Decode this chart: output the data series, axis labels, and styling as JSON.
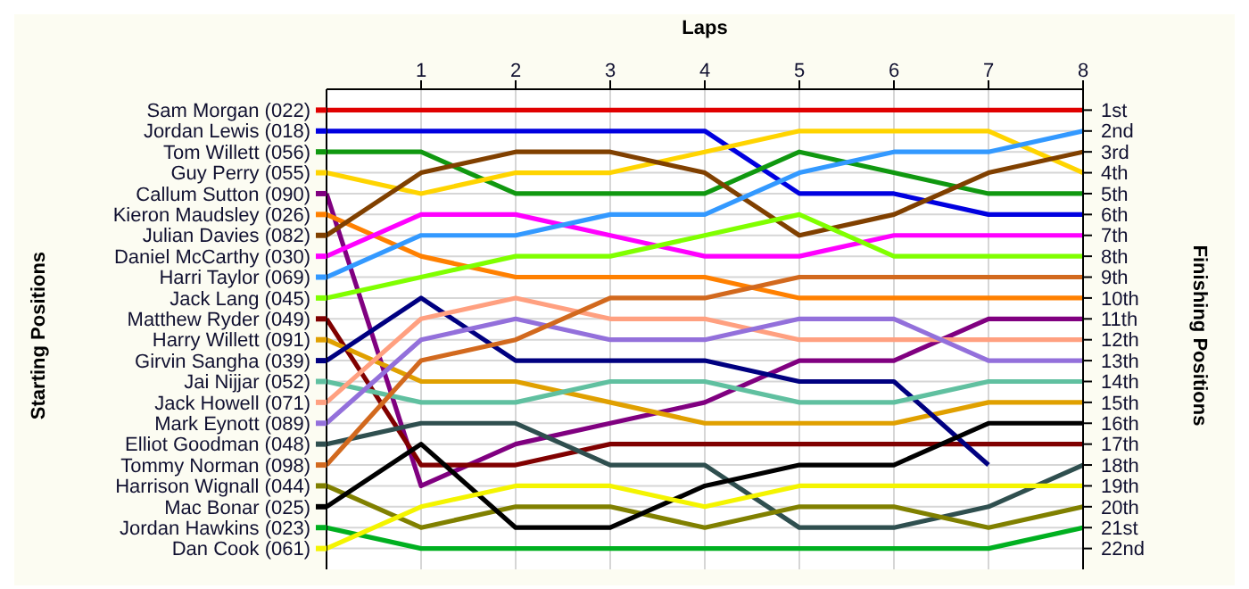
{
  "chart_data": {
    "type": "line",
    "title": "Laps",
    "annotations": [
      "Starting Positions"
    ],
    "y2label": "Finishing Positions",
    "legend": "left",
    "x": [
      0,
      1,
      2,
      3,
      4,
      5,
      6,
      7,
      8
    ],
    "xlim": [
      0,
      8
    ],
    "xticks": [
      1,
      2,
      3,
      4,
      5,
      6,
      7,
      8
    ],
    "y2lim": [
      23,
      0
    ],
    "y2ticks": [
      {
        "value": 1,
        "label": "1st"
      },
      {
        "value": 2,
        "label": "2nd"
      },
      {
        "value": 3,
        "label": "3rd"
      },
      {
        "value": 4,
        "label": "4th"
      },
      {
        "value": 5,
        "label": "5th"
      },
      {
        "value": 6,
        "label": "6th"
      },
      {
        "value": 7,
        "label": "7th"
      },
      {
        "value": 8,
        "label": "8th"
      },
      {
        "value": 9,
        "label": "9th"
      },
      {
        "value": 10,
        "label": "10th"
      },
      {
        "value": 11,
        "label": "11th"
      },
      {
        "value": 12,
        "label": "12th"
      },
      {
        "value": 13,
        "label": "13th"
      },
      {
        "value": 14,
        "label": "14th"
      },
      {
        "value": 15,
        "label": "15th"
      },
      {
        "value": 16,
        "label": "16th"
      },
      {
        "value": 17,
        "label": "17th"
      },
      {
        "value": 18,
        "label": "18th"
      },
      {
        "value": 19,
        "label": "19th"
      },
      {
        "value": 20,
        "label": "20th"
      },
      {
        "value": 21,
        "label": "21st"
      },
      {
        "value": 22,
        "label": "22nd"
      }
    ],
    "grid": true,
    "marker": "none",
    "line_style": "solid",
    "series": [
      {
        "name": "Sam Morgan (022)",
        "axis": "y2",
        "color": "#e00000",
        "values": [
          1,
          1,
          1,
          1,
          1,
          1,
          1,
          1,
          1
        ]
      },
      {
        "name": "Jordan Lewis (018)",
        "axis": "y2",
        "color": "#0000e0",
        "values": [
          2,
          2,
          2,
          2,
          2,
          5,
          5,
          6,
          6
        ]
      },
      {
        "name": "Tom Willett (056)",
        "axis": "y2",
        "color": "#109810",
        "values": [
          3,
          3,
          5,
          5,
          5,
          3,
          4,
          5,
          5
        ]
      },
      {
        "name": "Guy Perry (055)",
        "axis": "y2",
        "color": "#ffd400",
        "values": [
          4,
          5,
          4,
          4,
          3,
          2,
          2,
          2,
          4
        ]
      },
      {
        "name": "Callum Sutton (090)",
        "axis": "y2",
        "color": "#800080",
        "values": [
          5,
          19,
          17,
          16,
          15,
          13,
          13,
          11,
          11
        ]
      },
      {
        "name": "Kieron Maudsley (026)",
        "axis": "y2",
        "color": "#ff8000",
        "values": [
          6,
          8,
          9,
          9,
          9,
          10,
          10,
          10,
          10
        ]
      },
      {
        "name": "Julian Davies (082)",
        "axis": "y2",
        "color": "#804000",
        "values": [
          7,
          4,
          3,
          3,
          4,
          7,
          6,
          4,
          3
        ]
      },
      {
        "name": "Daniel McCarthy (030)",
        "axis": "y2",
        "color": "#ff00ff",
        "values": [
          8,
          6,
          6,
          7,
          8,
          8,
          7,
          7,
          7
        ]
      },
      {
        "name": "Harri Taylor (069)",
        "axis": "y2",
        "color": "#3399ff",
        "values": [
          9,
          7,
          7,
          6,
          6,
          4,
          3,
          3,
          2
        ]
      },
      {
        "name": "Jack Lang (045)",
        "axis": "y2",
        "color": "#80ff00",
        "values": [
          10,
          9,
          8,
          8,
          7,
          6,
          8,
          8,
          8
        ]
      },
      {
        "name": "Matthew Ryder (049)",
        "axis": "y2",
        "color": "#800000",
        "values": [
          11,
          18,
          18,
          17,
          17,
          17,
          17,
          17,
          17
        ]
      },
      {
        "name": "Harry Willett (091)",
        "axis": "y2",
        "color": "#e0a000",
        "values": [
          12,
          14,
          14,
          15,
          16,
          16,
          16,
          15,
          15
        ]
      },
      {
        "name": "Girvin Sangha (039)",
        "axis": "y2",
        "color": "#000080",
        "values": [
          13,
          10,
          13,
          13,
          13,
          14,
          14,
          18,
          null
        ]
      },
      {
        "name": "Jai Nijjar (052)",
        "axis": "y2",
        "color": "#60c0a0",
        "values": [
          14,
          15,
          15,
          14,
          14,
          15,
          15,
          14,
          14
        ]
      },
      {
        "name": "Jack Howell (071)",
        "axis": "y2",
        "color": "#ffa080",
        "values": [
          15,
          11,
          10,
          11,
          11,
          12,
          12,
          12,
          12
        ]
      },
      {
        "name": "Mark Eynott (089)",
        "axis": "y2",
        "color": "#9370db",
        "values": [
          16,
          12,
          11,
          12,
          12,
          11,
          11,
          13,
          13
        ]
      },
      {
        "name": "Elliot Goodman (048)",
        "axis": "y2",
        "color": "#2f4f4f",
        "values": [
          17,
          16,
          16,
          18,
          18,
          21,
          21,
          20,
          18
        ]
      },
      {
        "name": "Tommy Norman (098)",
        "axis": "y2",
        "color": "#d2691e",
        "values": [
          18,
          13,
          12,
          10,
          10,
          9,
          9,
          9,
          9
        ]
      },
      {
        "name": "Harrison Wignall (044)",
        "axis": "y2",
        "color": "#808000",
        "values": [
          19,
          21,
          20,
          20,
          21,
          20,
          20,
          21,
          20
        ]
      },
      {
        "name": "Mac Bonar (025)",
        "axis": "y2",
        "color": "#000000",
        "values": [
          20,
          17,
          21,
          21,
          19,
          18,
          18,
          16,
          16
        ]
      },
      {
        "name": "Jordan Hawkins (023)",
        "axis": "y2",
        "color": "#00b020",
        "values": [
          21,
          22,
          22,
          22,
          22,
          22,
          22,
          22,
          21
        ]
      },
      {
        "name": "Dan Cook (061)",
        "axis": "y2",
        "color": "#f4f400",
        "values": [
          22,
          20,
          19,
          19,
          20,
          19,
          19,
          19,
          19
        ]
      }
    ]
  }
}
